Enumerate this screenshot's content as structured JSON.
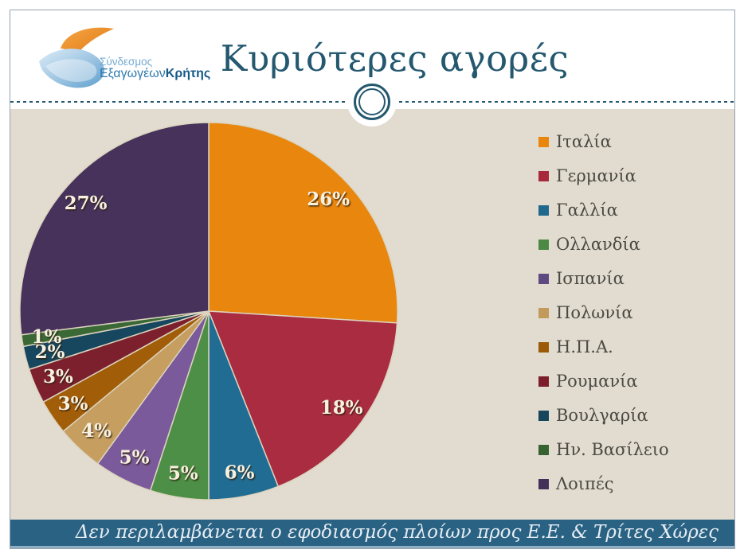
{
  "slide": {
    "title": "Κυριότερες αγορές",
    "logo": {
      "line1": "Σύνδεσμος",
      "line2a": "Εξαγωγέων",
      "line2b": "Κρήτης"
    },
    "footer_note": "Δεν περιλαμβάνεται ο εφοδιασμός πλοίων προς Ε.Ε. & Τρίτες Χώρες"
  },
  "colors": {
    "title_text": "#24586f",
    "panel_background": "#e1dccf",
    "footer_bar": "#2a6284",
    "pie_label_text": "#f8f1df",
    "legend_text": "#4b4943",
    "slice_outline": "#dcd3bf"
  },
  "chart_data": {
    "type": "pie",
    "title": "Κυριότερες αγορές",
    "categories": [
      "Ιταλία",
      "Γερμανία",
      "Γαλλία",
      "Ολλανδία",
      "Ισπανία",
      "Πολωνία",
      "Η.Π.Α.",
      "Ρουμανία",
      "Βουλγαρία",
      "Ην. Βασίλειο",
      "Λοιπές"
    ],
    "values": [
      26,
      18,
      6,
      5,
      5,
      4,
      3,
      3,
      2,
      1,
      27
    ],
    "unit": "%",
    "colors": [
      "#e8860d",
      "#a92c40",
      "#206c92",
      "#4d8f46",
      "#7a5a9a",
      "#c59e60",
      "#a25d08",
      "#7d202d",
      "#17475e",
      "#3a6935",
      "#46325a"
    ],
    "legend_colors": [
      "#e8860d",
      "#a8293b",
      "#20688c",
      "#4c8a44",
      "#5e4a80",
      "#c29a5c",
      "#9b5a08",
      "#7c1e2c",
      "#17455c",
      "#356230",
      "#44315a"
    ],
    "start_angle_deg": 0,
    "direction": "clockwise",
    "data_labels": "inside-percent",
    "legend_position": "right",
    "footnote": "Δεν περιλαμβάνεται ο εφοδιασμός πλοίων προς Ε.Ε. & Τρίτες Χώρες"
  }
}
